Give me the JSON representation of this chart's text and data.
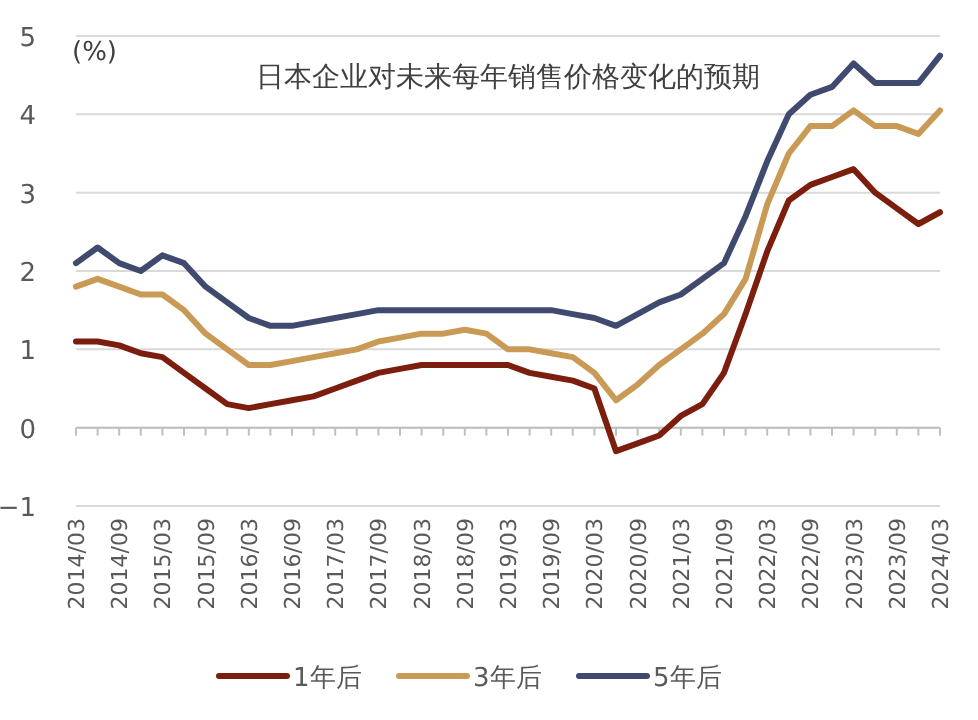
{
  "chart_data": {
    "type": "line",
    "title": "日本企业对未来每年销售价格变化的预期",
    "ylabel": "(%)",
    "categories": [
      "2014/03",
      null,
      "2014/09",
      null,
      "2015/03",
      null,
      "2015/09",
      null,
      "2016/03",
      null,
      "2016/09",
      null,
      "2017/03",
      null,
      "2017/09",
      null,
      "2018/03",
      null,
      "2018/09",
      null,
      "2019/03",
      null,
      "2019/09",
      null,
      "2020/03",
      null,
      "2020/09",
      null,
      "2021/03",
      null,
      "2021/09",
      null,
      "2022/03",
      null,
      "2022/09",
      null,
      "2023/03",
      null,
      "2023/09",
      null,
      "2024/03"
    ],
    "series": [
      {
        "name": "1年后",
        "color": "#7b1e0e",
        "values": [
          1.1,
          1.1,
          1.05,
          0.95,
          0.9,
          0.7,
          0.5,
          0.3,
          0.25,
          0.3,
          0.35,
          0.4,
          0.5,
          0.6,
          0.7,
          0.75,
          0.8,
          0.8,
          0.8,
          0.8,
          0.8,
          0.7,
          0.65,
          0.6,
          0.5,
          -0.3,
          -0.2,
          -0.1,
          0.15,
          0.3,
          0.7,
          1.45,
          2.25,
          2.9,
          3.1,
          3.2,
          3.3,
          3.0,
          2.8,
          2.6,
          2.75
        ]
      },
      {
        "name": "3年后",
        "color": "#c99a56",
        "values": [
          1.8,
          1.9,
          1.8,
          1.7,
          1.7,
          1.5,
          1.2,
          1.0,
          0.8,
          0.8,
          0.85,
          0.9,
          0.95,
          1.0,
          1.1,
          1.15,
          1.2,
          1.2,
          1.25,
          1.2,
          1.0,
          1.0,
          0.95,
          0.9,
          0.7,
          0.35,
          0.55,
          0.8,
          1.0,
          1.2,
          1.45,
          1.9,
          2.85,
          3.5,
          3.85,
          3.85,
          4.05,
          3.85,
          3.85,
          3.75,
          4.05
        ]
      },
      {
        "name": "5年后",
        "color": "#3f4a6e",
        "values": [
          2.1,
          2.3,
          2.1,
          2.0,
          2.2,
          2.1,
          1.8,
          1.6,
          1.4,
          1.3,
          1.3,
          1.35,
          1.4,
          1.45,
          1.5,
          1.5,
          1.5,
          1.5,
          1.5,
          1.5,
          1.5,
          1.5,
          1.5,
          1.45,
          1.4,
          1.3,
          1.45,
          1.6,
          1.7,
          1.9,
          2.1,
          2.7,
          3.4,
          4.0,
          4.25,
          4.35,
          4.65,
          4.4,
          4.4,
          4.4,
          4.75
        ]
      }
    ],
    "ylim": [
      -1,
      5
    ],
    "yticks": [
      -1,
      0,
      1,
      2,
      3,
      4,
      5
    ],
    "grid": "y",
    "legend": "bottom",
    "marker": "none",
    "line_style": "solid"
  }
}
